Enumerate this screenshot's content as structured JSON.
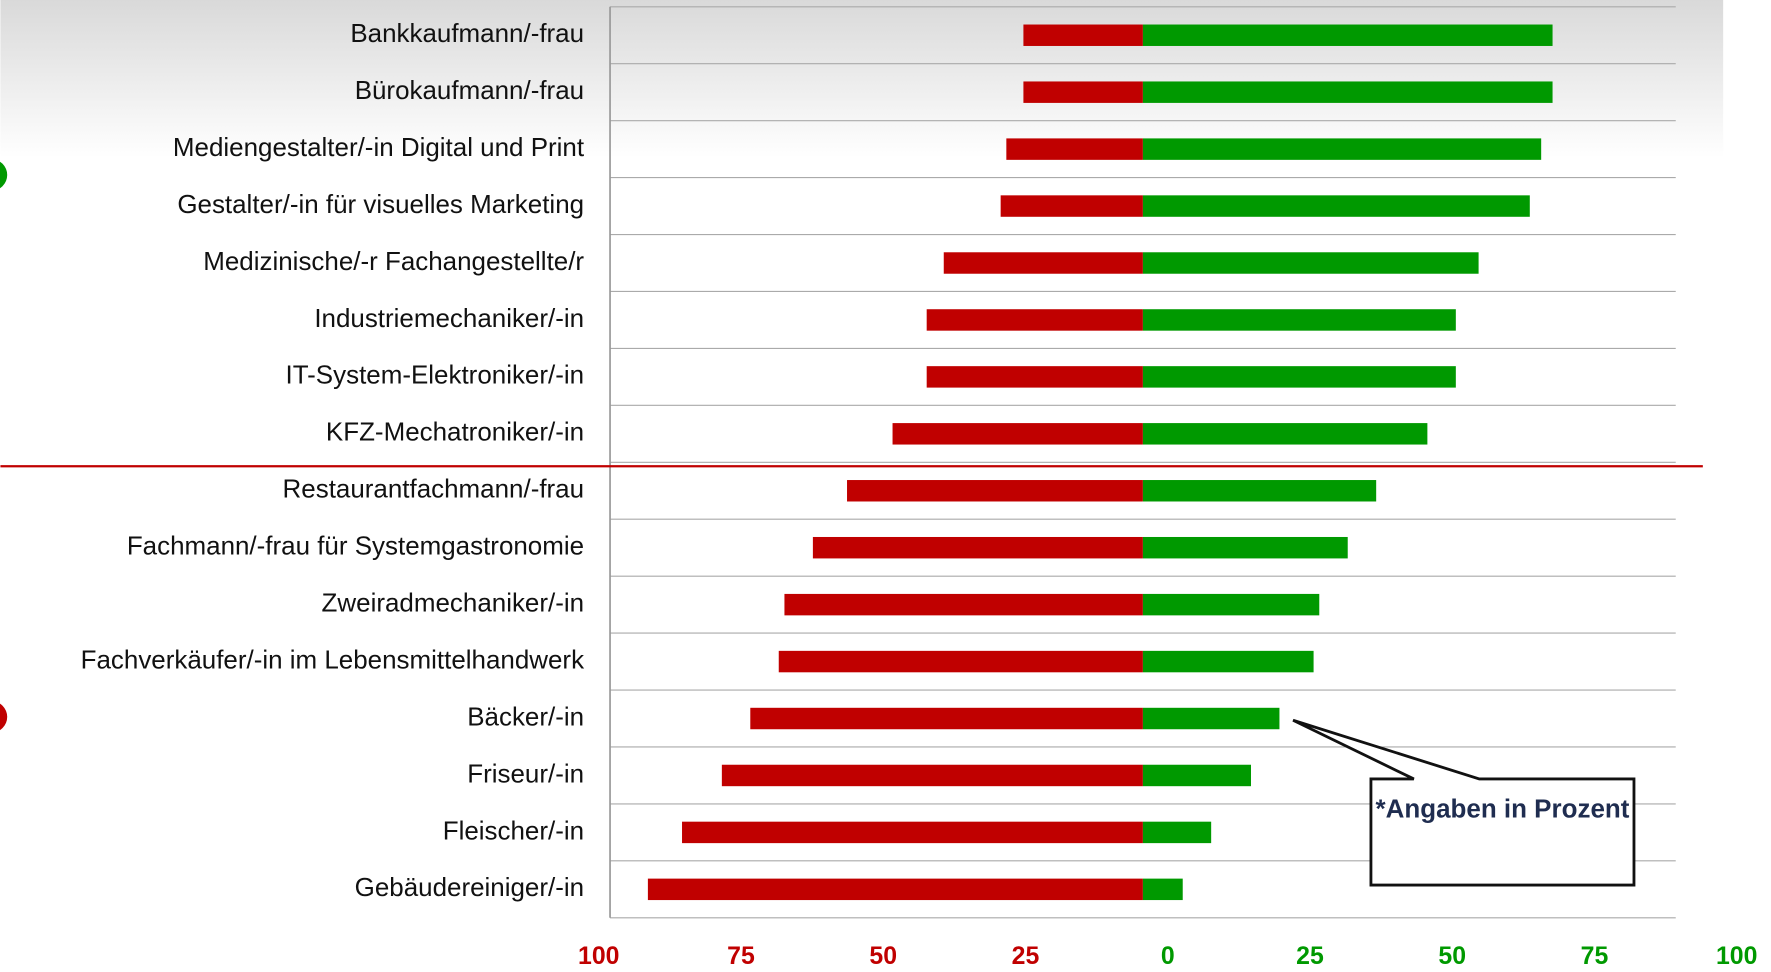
{
  "chart_data": {
    "type": "diverging-bar",
    "categories": [
      "Bankkaufmann/-frau",
      "Bürokaufmann/-frau",
      "Mediengestalter/-in Digital und Print",
      "Gestalter/-in für visuelles Marketing",
      "Medizinische/-r Fachangestellte/r",
      "Industriemechaniker/-in",
      "IT-System-Elektroniker/-in",
      "KFZ-Mechatroniker/-in",
      "Restaurantfachmann/-frau",
      "Fachmann/-frau für Systemgastronomie",
      "Zweiradmechaniker/-in",
      "Fachverkäufer/-in im Lebensmittelhandwerk",
      "Bäcker/-in",
      "Friseur/-in",
      "Fleischer/-in",
      "Gebäudereiniger/-in"
    ],
    "series": [
      {
        "color": "#c00000",
        "values": [
          -21,
          -21,
          -24,
          -25,
          -35,
          -38,
          -38,
          -44,
          -52,
          -58,
          -63,
          -64,
          -69,
          -74,
          -81,
          -87
        ]
      },
      {
        "color": "#009900",
        "values": [
          72,
          72,
          70,
          68,
          59,
          55,
          55,
          50,
          41,
          36,
          31,
          30,
          24,
          19,
          12,
          7
        ]
      }
    ],
    "xlim": [
      -100,
      100
    ],
    "xticks": [
      {
        "value": -100,
        "label": "100"
      },
      {
        "value": -75,
        "label": "75"
      },
      {
        "value": -50,
        "label": "50"
      },
      {
        "value": -25,
        "label": "25"
      },
      0,
      25,
      50,
      75,
      100
    ],
    "tick_colors": {
      "negative": "#c00000",
      "positive": "#009900"
    },
    "annotation": "*Angaben in Prozent"
  }
}
